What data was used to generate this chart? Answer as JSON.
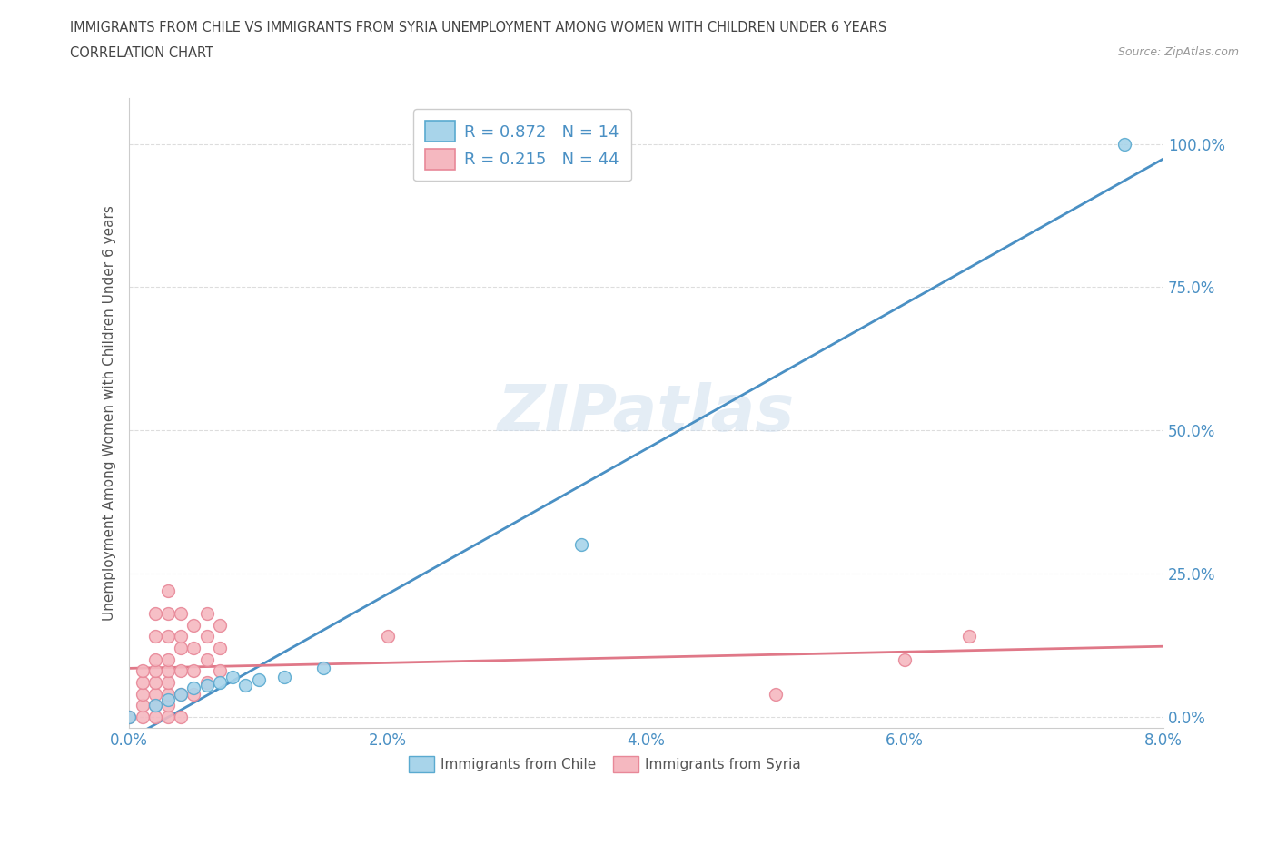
{
  "title_line1": "IMMIGRANTS FROM CHILE VS IMMIGRANTS FROM SYRIA UNEMPLOYMENT AMONG WOMEN WITH CHILDREN UNDER 6 YEARS",
  "title_line2": "CORRELATION CHART",
  "source_text": "Source: ZipAtlas.com",
  "ylabel": "Unemployment Among Women with Children Under 6 years",
  "xlim": [
    0.0,
    0.08
  ],
  "ylim": [
    -0.02,
    1.08
  ],
  "xtick_labels": [
    "0.0%",
    "2.0%",
    "4.0%",
    "6.0%",
    "8.0%"
  ],
  "xtick_values": [
    0.0,
    0.02,
    0.04,
    0.06,
    0.08
  ],
  "ytick_labels": [
    "0.0%",
    "25.0%",
    "50.0%",
    "75.0%",
    "100.0%"
  ],
  "ytick_values": [
    0.0,
    0.25,
    0.5,
    0.75,
    1.0
  ],
  "watermark": "ZIPatlas",
  "legend_r_chile": "R = 0.872",
  "legend_n_chile": "N = 14",
  "legend_r_syria": "R = 0.215",
  "legend_n_syria": "N = 44",
  "chile_color": "#a8d4ea",
  "syria_color": "#f5b8c0",
  "chile_edge_color": "#5aaad0",
  "syria_edge_color": "#e88898",
  "chile_line_color": "#4a90c4",
  "syria_line_color": "#e07888",
  "chile_scatter": [
    [
      0.0,
      0.0
    ],
    [
      0.002,
      0.02
    ],
    [
      0.003,
      0.03
    ],
    [
      0.004,
      0.04
    ],
    [
      0.005,
      0.05
    ],
    [
      0.006,
      0.055
    ],
    [
      0.007,
      0.06
    ],
    [
      0.008,
      0.07
    ],
    [
      0.009,
      0.055
    ],
    [
      0.01,
      0.065
    ],
    [
      0.012,
      0.07
    ],
    [
      0.015,
      0.085
    ],
    [
      0.035,
      0.3
    ],
    [
      0.077,
      1.0
    ]
  ],
  "syria_scatter": [
    [
      0.0,
      0.0
    ],
    [
      0.001,
      0.0
    ],
    [
      0.001,
      0.02
    ],
    [
      0.001,
      0.04
    ],
    [
      0.001,
      0.06
    ],
    [
      0.001,
      0.08
    ],
    [
      0.002,
      0.0
    ],
    [
      0.002,
      0.02
    ],
    [
      0.002,
      0.04
    ],
    [
      0.002,
      0.06
    ],
    [
      0.002,
      0.08
    ],
    [
      0.002,
      0.1
    ],
    [
      0.002,
      0.14
    ],
    [
      0.002,
      0.18
    ],
    [
      0.003,
      0.0
    ],
    [
      0.003,
      0.02
    ],
    [
      0.003,
      0.04
    ],
    [
      0.003,
      0.06
    ],
    [
      0.003,
      0.08
    ],
    [
      0.003,
      0.1
    ],
    [
      0.003,
      0.14
    ],
    [
      0.003,
      0.18
    ],
    [
      0.003,
      0.22
    ],
    [
      0.004,
      0.0
    ],
    [
      0.004,
      0.04
    ],
    [
      0.004,
      0.08
    ],
    [
      0.004,
      0.12
    ],
    [
      0.004,
      0.14
    ],
    [
      0.004,
      0.18
    ],
    [
      0.005,
      0.04
    ],
    [
      0.005,
      0.08
    ],
    [
      0.005,
      0.12
    ],
    [
      0.005,
      0.16
    ],
    [
      0.006,
      0.06
    ],
    [
      0.006,
      0.1
    ],
    [
      0.006,
      0.14
    ],
    [
      0.006,
      0.18
    ],
    [
      0.007,
      0.08
    ],
    [
      0.007,
      0.12
    ],
    [
      0.007,
      0.16
    ],
    [
      0.02,
      0.14
    ],
    [
      0.05,
      0.04
    ],
    [
      0.06,
      0.1
    ],
    [
      0.065,
      0.14
    ]
  ],
  "background_color": "#ffffff",
  "grid_color": "#dddddd"
}
